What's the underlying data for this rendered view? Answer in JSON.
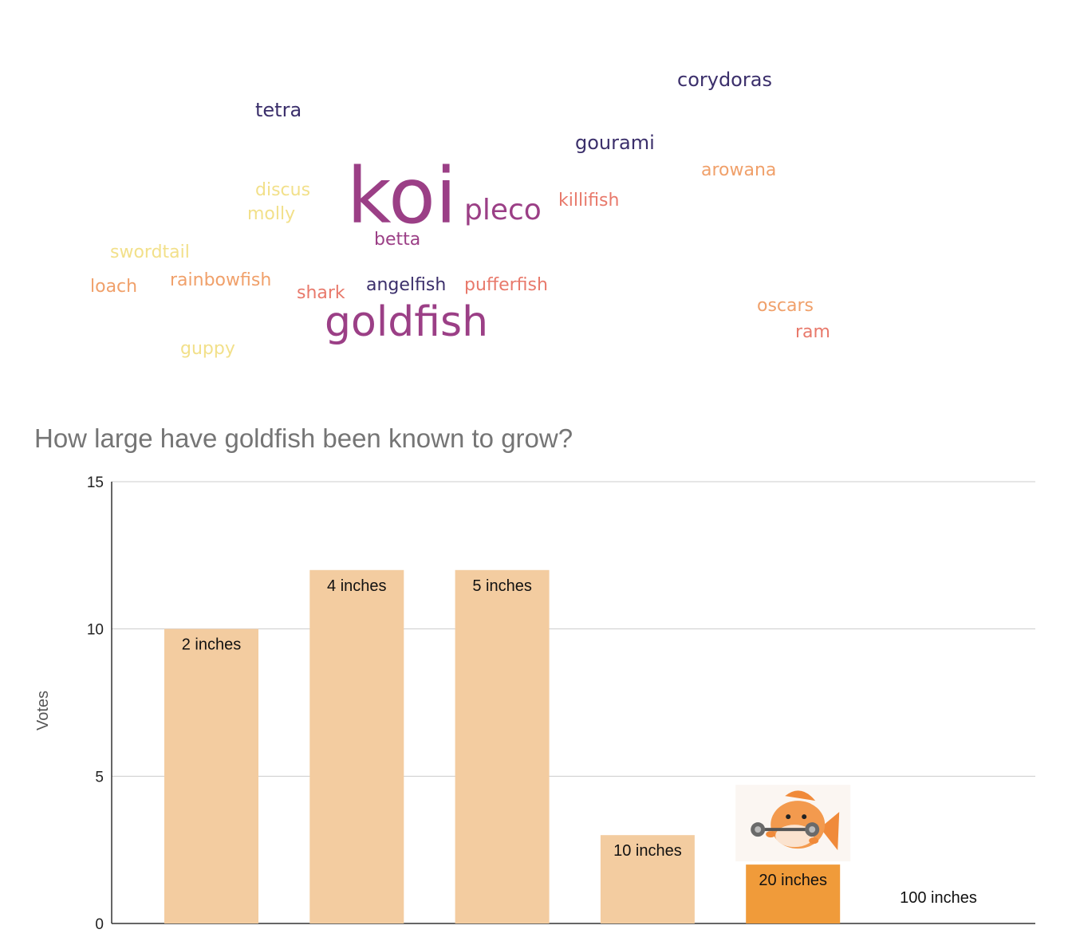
{
  "wordcloud": {
    "words": [
      {
        "text": "corydoras",
        "color": "#3b2f6b",
        "size": 24
      },
      {
        "text": "tetra",
        "color": "#3b2f6b",
        "size": 24
      },
      {
        "text": "gourami",
        "color": "#3b2f6b",
        "size": 24
      },
      {
        "text": "arowana",
        "color": "#f0a06a",
        "size": 22
      },
      {
        "text": "discus",
        "color": "#f2e08a",
        "size": 22
      },
      {
        "text": "molly",
        "color": "#f2e08a",
        "size": 22
      },
      {
        "text": "koi",
        "color": "#9b3f86",
        "size": 96
      },
      {
        "text": "pleco",
        "color": "#9b3f86",
        "size": 36
      },
      {
        "text": "killifish",
        "color": "#e8796b",
        "size": 22
      },
      {
        "text": "betta",
        "color": "#9b3f86",
        "size": 22
      },
      {
        "text": "swordtail",
        "color": "#f2e08a",
        "size": 22
      },
      {
        "text": "loach",
        "color": "#f0a06a",
        "size": 22
      },
      {
        "text": "rainbowfish",
        "color": "#f0a06a",
        "size": 22
      },
      {
        "text": "shark",
        "color": "#e8796b",
        "size": 22
      },
      {
        "text": "angelfish",
        "color": "#3b2f6b",
        "size": 22
      },
      {
        "text": "pufferfish",
        "color": "#e8796b",
        "size": 22
      },
      {
        "text": "goldfish",
        "color": "#9b3f86",
        "size": 52
      },
      {
        "text": "oscars",
        "color": "#f0a06a",
        "size": 22
      },
      {
        "text": "ram",
        "color": "#e8796b",
        "size": 22
      },
      {
        "text": "guppy",
        "color": "#f2e08a",
        "size": 22
      }
    ]
  },
  "chart_data": {
    "type": "bar",
    "title": "How large have goldfish been known to grow?",
    "ylabel": "Votes",
    "xlabel": "",
    "ylim": [
      0,
      15
    ],
    "yticks": [
      0,
      5,
      10,
      15
    ],
    "grid": true,
    "categories": [
      "2 inches",
      "4 inches",
      "5 inches",
      "10 inches",
      "20 inches",
      "100 inches"
    ],
    "values": [
      10,
      12,
      12,
      3,
      2,
      0
    ],
    "bar_color": "#f3cca0",
    "highlight_color": "#f09b3a",
    "highlight_index": 4,
    "icon": "goldfish-lifting-dumbbell-icon"
  }
}
